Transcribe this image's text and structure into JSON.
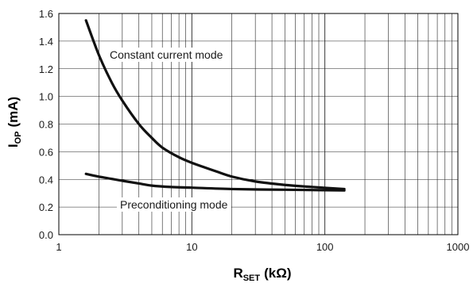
{
  "chart_data": {
    "type": "line",
    "x_scale": "log",
    "xlim": [
      1,
      1000
    ],
    "ylim": [
      0,
      1.6
    ],
    "x_ticks": [
      "1",
      "10",
      "100",
      "1000"
    ],
    "y_ticks": [
      "0.0",
      "0.2",
      "0.4",
      "0.6",
      "0.8",
      "1.0",
      "1.2",
      "1.4",
      "1.6"
    ],
    "xlabel": {
      "main": "R",
      "sub": "SET",
      "unit": "(kΩ)"
    },
    "ylabel": {
      "main": "I",
      "sub": "OP",
      "unit": "(mA)"
    },
    "grid": true,
    "series": [
      {
        "name": "Constant current mode",
        "x": [
          1.6,
          2,
          2.5,
          3,
          4,
          5,
          6,
          8,
          10,
          15,
          20,
          30,
          50,
          80,
          140
        ],
        "y": [
          1.55,
          1.3,
          1.1,
          0.97,
          0.8,
          0.7,
          0.63,
          0.56,
          0.52,
          0.46,
          0.42,
          0.385,
          0.36,
          0.345,
          0.33
        ]
      },
      {
        "name": "Preconditioning mode",
        "x": [
          1.6,
          2,
          3,
          4,
          5,
          7,
          10,
          20,
          50,
          100,
          140
        ],
        "y": [
          0.44,
          0.42,
          0.39,
          0.37,
          0.355,
          0.345,
          0.34,
          0.33,
          0.325,
          0.322,
          0.32
        ]
      }
    ],
    "annotations": [
      "Constant current mode",
      "Preconditioning mode"
    ]
  }
}
